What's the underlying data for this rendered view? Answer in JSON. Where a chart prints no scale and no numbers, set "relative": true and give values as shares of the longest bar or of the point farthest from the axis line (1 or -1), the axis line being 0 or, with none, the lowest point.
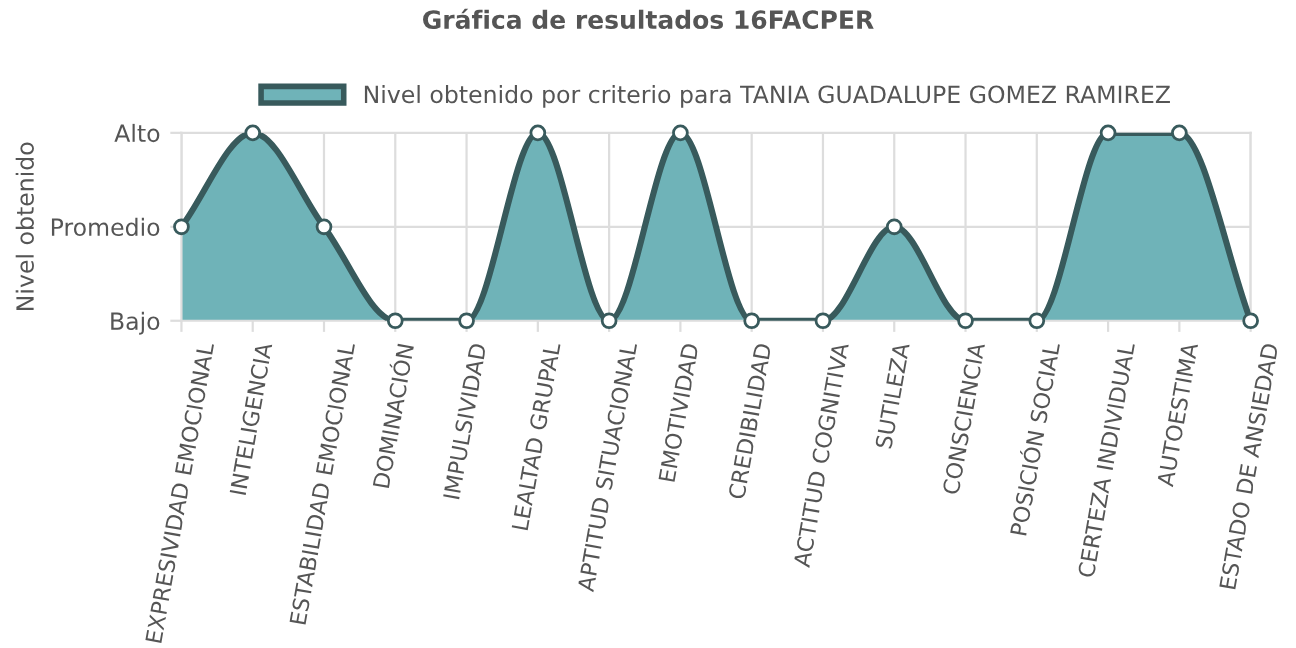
{
  "chart_data": {
    "type": "area",
    "title": "Gráfica de resultados 16FACPER",
    "ylabel": "Nivel obtenido",
    "categories": [
      "EXPRESIVIDAD EMOCIONAL",
      "INTELIGENCIA",
      "ESTABILIDAD EMOCIONAL",
      "DOMINACIÓN",
      "IMPULSIVIDAD",
      "LEALTAD GRUPAL",
      "APTITUD SITUACIONAL",
      "EMOTIVIDAD",
      "CREDIBILIDAD",
      "ACTITUD COGNITIVA",
      "SUTILEZA",
      "CONSCIENCIA",
      "POSICIÓN SOCIAL",
      "CERTEZA INDIVIDUAL",
      "AUTOESTIMA",
      "ESTADO DE ANSIEDAD"
    ],
    "series": [
      {
        "name": "Nivel obtenido por criterio para TANIA GUADALUPE GOMEZ RAMIREZ",
        "color": "#6fb3b8",
        "values": [
          0.5,
          1,
          0.5,
          0,
          0,
          1,
          0,
          1,
          0,
          0,
          0.5,
          0,
          0,
          1,
          1,
          0
        ]
      }
    ],
    "relative": true,
    "y_categories": [
      "Alto",
      "Promedio",
      "Bajo"
    ],
    "grid": true,
    "legend": "top",
    "marker": "circle",
    "line_style": "solid"
  }
}
